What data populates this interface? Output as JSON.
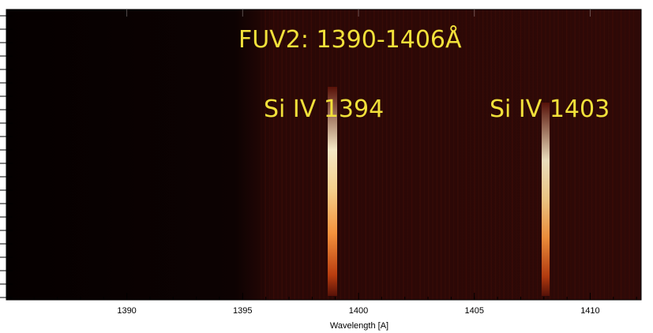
{
  "chart_data": {
    "type": "spectrogram",
    "annotations": [
      "FUV2: 1390-1406Å",
      "Si IV 1394",
      "Si IV 1403"
    ],
    "x_label": "Wavelength [A]",
    "xlim": [
      1384.8,
      1412.2
    ],
    "xticks": [
      1390,
      1395,
      1400,
      1405,
      1410
    ]
  }
}
